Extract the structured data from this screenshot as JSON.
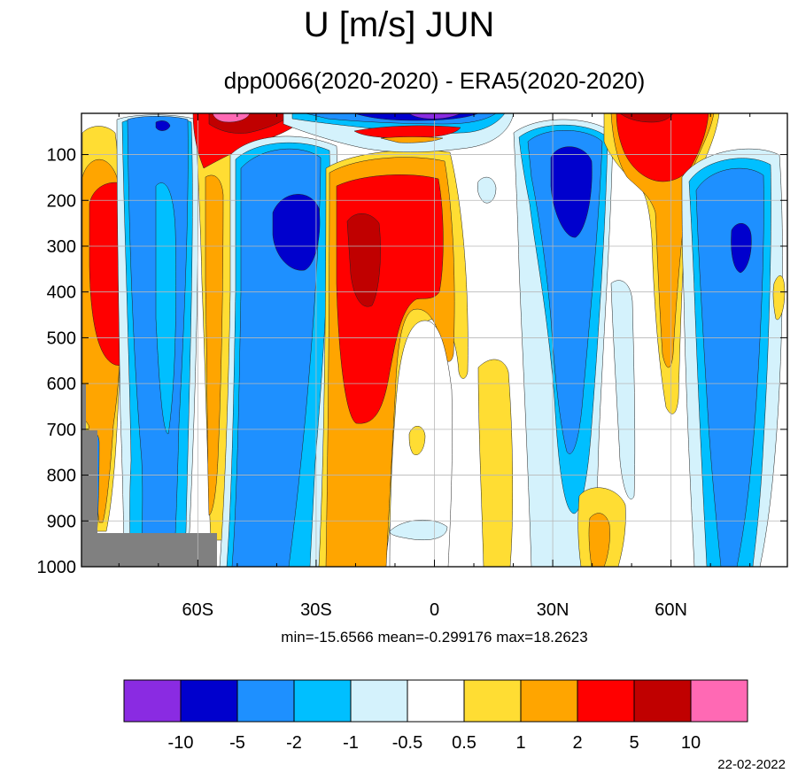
{
  "title": "U [m/s] JUN",
  "subtitle": "dpp0066(2020-2020) - ERA5(2020-2020)",
  "stats_text": "min=-15.6566   mean=-0.299176   max=18.2623",
  "date": "22-02-2022",
  "chart_data": {
    "type": "heatmap",
    "title": "U [m/s] JUN",
    "subtitle": "dpp0066(2020-2020) - ERA5(2020-2020)",
    "variable": "U",
    "units": "m/s",
    "x_ticks": [
      -60,
      -30,
      0,
      30,
      60
    ],
    "x_tick_labels": [
      "60S",
      "30S",
      "0",
      "30N",
      "60N"
    ],
    "xlim": [
      -89.5,
      89.5
    ],
    "y_ticks": [
      100,
      200,
      300,
      400,
      500,
      600,
      700,
      800,
      900,
      1000
    ],
    "y_tick_labels": [
      "100",
      "200",
      "300",
      "400",
      "500",
      "600",
      "700",
      "800",
      "900",
      "1000"
    ],
    "ylim": [
      10,
      1000
    ],
    "y_inverted": true,
    "grid": true,
    "stats": {
      "min": -15.6566,
      "mean": -0.299176,
      "max": 18.2623
    },
    "colorbar": {
      "levels": [
        -10,
        -5,
        -2,
        -1,
        -0.5,
        0.5,
        1,
        2,
        5,
        10
      ],
      "labels": [
        "-10",
        "-5",
        "-2",
        "-1",
        "-0.5",
        "0.5",
        "1",
        "2",
        "5",
        "10"
      ],
      "colors": [
        "#8a2be2",
        "#0000cd",
        "#1e90ff",
        "#00bfff",
        "#d4f2fc",
        "#ffffff",
        "#ffdd33",
        "#ffa500",
        "#ff0000",
        "#c00000",
        "#ff69b4"
      ]
    },
    "missing_color": "#808080",
    "features": [
      {
        "name": "SH mid-latitude positive",
        "lat": -76,
        "p_top": 160,
        "p_bot": 570,
        "value": 5
      },
      {
        "name": "SH high-latitude negative",
        "lat": -65,
        "p_top": 10,
        "p_bot": 1000,
        "value": -2
      },
      {
        "name": "southern subtropical negative core",
        "lat": -35,
        "p_top": 190,
        "p_bot": 360,
        "value": -5
      },
      {
        "name": "tropical positive core",
        "lat": -18,
        "p_top": 200,
        "p_bot": 400,
        "value": 10
      },
      {
        "name": "tropical positive region",
        "lat": -15,
        "p_top": 160,
        "p_bot": 680,
        "value": 5
      },
      {
        "name": "northern subtropical negative core",
        "lat": 33,
        "p_top": 80,
        "p_bot": 260,
        "value": -5
      },
      {
        "name": "NH mid-latitude positive",
        "lat": 60,
        "p_top": 10,
        "p_bot": 200,
        "value": 5
      },
      {
        "name": "NH high-latitude negative core",
        "lat": 78,
        "p_top": 240,
        "p_bot": 360,
        "value": -5
      },
      {
        "name": "upper-level positive band",
        "lat": -50,
        "p_top": 10,
        "p_bot": 60,
        "value": 10
      },
      {
        "name": "upper-level negative band",
        "lat": 0,
        "p_top": 10,
        "p_bot": 40,
        "value": -10
      }
    ]
  }
}
